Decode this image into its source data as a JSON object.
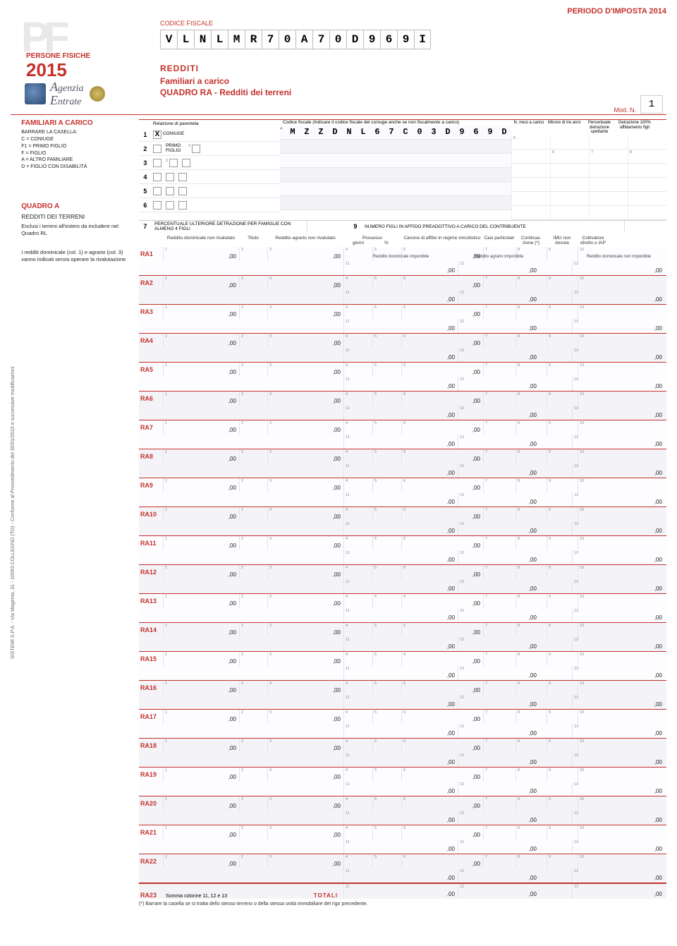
{
  "periodo": "PERIODO D'IMPOSTA 2014",
  "logo": {
    "pf_bg": "PF",
    "label": "PERSONE FISICHE",
    "year": "2015",
    "agenzia1": "genzia",
    "agenzia2": "ntrate"
  },
  "header": {
    "cf_label": "CODICE FISCALE",
    "cf_value": [
      "V",
      "L",
      "N",
      "L",
      "M",
      "R",
      "7",
      "0",
      "A",
      "7",
      "0",
      "D",
      "9",
      "6",
      "9",
      "I"
    ],
    "redditi": "REDDITI",
    "sub": "Familiari a carico",
    "quadro_line": "QUADRO RA - Redditi dei terreni",
    "mod_label": "Mod. N.",
    "mod_n": "1"
  },
  "side_rail": "SISTEMI S.P.A.  - Via Magenta, 31 - 10093 COLLEGNO (TO) - Conforme al Provvedimento del 30/01/2015 e successive modificazioni",
  "sidebar": {
    "fam_title": "FAMILIARI A CARICO",
    "barrare": "BARRARE LA CASELLA:",
    "legend": [
      "C  =  CONIUGE",
      "F1 =  PRIMO FIGLIO",
      "F  =  FIGLIO",
      "A  =  ALTRO FAMILIARE",
      "D  =  FIGLIO CON DISABILITÀ"
    ],
    "quadro_title": "QUADRO A",
    "quadro_sub": "REDDITI DEI TERRENI",
    "note1": "Esclusi i terreni all'estero da includere nel Quadro RL",
    "note2": "I redditi dominicale (col. 1) e agrario (col. 3) vanno indicati senza operare la rivalutazione"
  },
  "fam": {
    "rel_header": "Relazione di parentela",
    "cf_header": "Codice fiscale (Indicare il codice fiscale del coniuge anche se non fiscalmente a carico)",
    "extra_headers": [
      "N. mesi a carico",
      "Minore di tre anni",
      "Percentuale detrazione spettante",
      "Detrazione 100% affidamento figli"
    ],
    "extra_sup_row1": [
      "5",
      "",
      "",
      ""
    ],
    "extra_sup_row2": [
      "",
      "6",
      "7",
      "8"
    ],
    "rows": [
      {
        "n": "1",
        "checked": "C",
        "rel": "CONIUGE",
        "cf": [
          "M",
          "Z",
          "Z",
          "D",
          "N",
          "L",
          "6",
          "7",
          "C",
          "0",
          "3",
          "D",
          "9",
          "6",
          "9",
          "D"
        ],
        "cf_sup": "4"
      },
      {
        "n": "2",
        "rel_opts": [
          "F1",
          "D"
        ],
        "rel_label": "PRIMO FIGLIO",
        "sup": "3"
      },
      {
        "n": "3",
        "rel_opts": [
          "F",
          "A",
          "D"
        ],
        "sup": "3"
      },
      {
        "n": "4",
        "rel_opts": [
          "F",
          "A",
          "D"
        ]
      },
      {
        "n": "5",
        "rel_opts": [
          "F",
          "A",
          "D"
        ]
      },
      {
        "n": "6",
        "rel_opts": [
          "F",
          "A",
          "D"
        ]
      }
    ],
    "row7_n": "7",
    "row7_l": "PERCENTUALE ULTERIORE DETRAZIONE PER FAMIGLIE CON ALMENO 4 FIGLI",
    "row7_n2": "9",
    "row7_r": "NUMERO FIGLI IN AFFIDO PREADOTTIVO A CARICO DEL CONTRIBUENTE"
  },
  "ra_headers": {
    "dom": "Reddito dominicale non rivalutato",
    "titolo": "Titolo",
    "agr": "Reddito agrario non rivalutato",
    "poss": "Possesso",
    "poss_sub": [
      "giorni",
      "%"
    ],
    "canone": "Canone di affitto in regime vincolistico",
    "casi": "Casi particolari",
    "cont": "Continua-zione (*)",
    "imu": "IMU non dovuta",
    "colt": "Coltivatore diretto o IAP",
    "imp1": "Reddito dominicale imponibile",
    "imp2": "Reddito agrario imponibile",
    "nonimp": "Reddito dominicale non imponibile"
  },
  "ra_sup": {
    "dom": "1",
    "titolo": "2",
    "agr": "3",
    "gio": "4",
    "pct": "5",
    "canone": "6",
    "casi": "7",
    "cont": "8",
    "imu": "9",
    "colt": "10",
    "imp1": "11",
    "imp2": "12",
    "nonimp": "13"
  },
  "ra_rows": [
    "RA1",
    "RA2",
    "RA3",
    "RA4",
    "RA5",
    "RA6",
    "RA7",
    "RA8",
    "RA9",
    "RA10",
    "RA11",
    "RA12",
    "RA13",
    "RA14",
    "RA15",
    "RA16",
    "RA17",
    "RA18",
    "RA19",
    "RA20",
    "RA21",
    "RA22"
  ],
  "zero": ",00",
  "totals": {
    "label": "RA23",
    "text": "Somma colonne 11, 12 e 13",
    "totali": "TOTALI"
  },
  "footnote": "(*) Barrare la casella se si tratta dello stesso terreno o della stessa unità immobiliare del rigo precedente."
}
